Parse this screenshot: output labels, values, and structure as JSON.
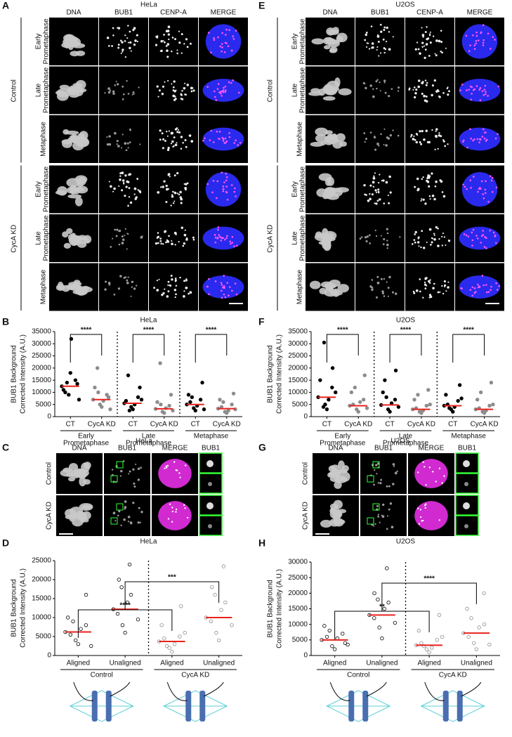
{
  "image_panels": [
    {
      "label": "A",
      "title": "HeLa",
      "columns": [
        "DNA",
        "BUB1",
        "CENP-A",
        "MERGE"
      ],
      "column_colors": [
        "#2a2aff",
        "#1fc21f",
        "#e020e0",
        "#000000"
      ],
      "groups": [
        {
          "name": "Control",
          "rows": [
            [
              "Early",
              "Prometaphase"
            ],
            [
              "Late",
              "Prometaphase"
            ],
            [
              "Metaphase"
            ]
          ]
        },
        {
          "name": "CycA KD",
          "rows": [
            [
              "Early",
              "Prometaphase"
            ],
            [
              "Late",
              "Prometaphase"
            ],
            [
              "Metaphase"
            ]
          ]
        }
      ]
    },
    {
      "label": "E",
      "title": "U2OS",
      "columns": [
        "DNA",
        "BUB1",
        "CENP-A",
        "MERGE"
      ],
      "column_colors": [
        "#2a2aff",
        "#1fc21f",
        "#e020e0",
        "#000000"
      ],
      "groups": [
        {
          "name": "Control",
          "rows": [
            [
              "Early",
              "Prometaphase"
            ],
            [
              "Late",
              "Prometaphase"
            ],
            [
              "Metaphase"
            ]
          ]
        },
        {
          "name": "CycA KD",
          "rows": [
            [
              "Early",
              "Prometaphase"
            ],
            [
              "Late",
              "Prometaphase"
            ],
            [
              "Metaphase"
            ]
          ]
        }
      ]
    },
    {
      "label": "C",
      "title": "HeLa",
      "columns": [
        "DNA",
        "BUB1",
        "MERGE",
        "BUB1"
      ],
      "column_colors": [
        "#e020e0",
        "#1fc21f",
        "#000000",
        "#000000"
      ],
      "rows": [
        "Control",
        "CycA KD"
      ],
      "inset_labels": [
        "U",
        "A"
      ]
    },
    {
      "label": "G",
      "title": "U2OS",
      "columns": [
        "DNA",
        "BUB1",
        "MERGE",
        "BUB1"
      ],
      "column_colors": [
        "#e020e0",
        "#1fc21f",
        "#000000",
        "#000000"
      ],
      "rows": [
        "Control",
        "CycA KD"
      ],
      "inset_labels": [
        "U",
        "A"
      ]
    }
  ],
  "chart_data": [
    {
      "type": "strip",
      "label": "B",
      "title": "HeLa",
      "y_label": [
        "BUB1 Background",
        "Corrected Intensity (A.U.)"
      ],
      "categories": [
        "CT",
        "CycA KD",
        "CT",
        "CycA KD",
        "CT",
        "CycA KD"
      ],
      "groups": [
        [
          "Early",
          "Prometaphase"
        ],
        [
          "Late",
          "Prometaphase"
        ],
        [
          "Metaphase"
        ]
      ],
      "colors": [
        "#000000",
        "#8c8c8c",
        "#000000",
        "#8c8c8c",
        "#000000",
        "#8c8c8c"
      ],
      "marker": "filled",
      "mean_color": "#e8221c",
      "ylim": [
        0,
        35000
      ],
      "yticks": [
        0,
        5000,
        10000,
        15000,
        20000,
        25000,
        30000,
        35000
      ],
      "significance": [
        "****",
        "****",
        "****"
      ],
      "means": [
        12500,
        7000,
        5500,
        3200,
        5000,
        3300
      ],
      "points": [
        [
          12500,
          9000,
          15000,
          11000,
          18000,
          13500,
          10000,
          32000,
          7000,
          14000
        ],
        [
          7000,
          5000,
          9000,
          12000,
          4000,
          8000,
          20000,
          6500,
          3000,
          10000
        ],
        [
          5500,
          4000,
          8000,
          6500,
          3000,
          12000,
          17000,
          5000,
          7000,
          2500
        ],
        [
          3200,
          2000,
          4500,
          6000,
          1500,
          9000,
          22000,
          3500,
          2500,
          5000
        ],
        [
          5000,
          3500,
          7000,
          9000,
          2500,
          14000,
          6000,
          4500,
          3000,
          8000
        ],
        [
          3300,
          2000,
          5000,
          7000,
          1500,
          9500,
          4000,
          2500,
          3000,
          6000
        ]
      ]
    },
    {
      "type": "strip",
      "label": "F",
      "title": "U2OS",
      "y_label": [
        "BUB1 Background",
        "Corrected Intensity (A.U.)"
      ],
      "categories": [
        "CT",
        "CycA KD",
        "CT",
        "CycA KD",
        "CT",
        "CycA KD"
      ],
      "groups": [
        [
          "Early",
          "Prometaphase"
        ],
        [
          "Late",
          "Prometaphase"
        ],
        [
          "Metaphase"
        ]
      ],
      "colors": [
        "#000000",
        "#8c8c8c",
        "#000000",
        "#8c8c8c",
        "#000000",
        "#8c8c8c"
      ],
      "marker": "filled",
      "mean_color": "#e8221c",
      "ylim": [
        0,
        35000
      ],
      "yticks": [
        0,
        5000,
        10000,
        15000,
        20000,
        25000,
        30000,
        35000
      ],
      "significance": [
        "****",
        "****",
        "****"
      ],
      "means": [
        8000,
        4500,
        4800,
        3000,
        4500,
        3000
      ],
      "points": [
        [
          8000,
          5000,
          12000,
          15000,
          3000,
          20000,
          30500,
          7000,
          10000,
          4000
        ],
        [
          4500,
          3000,
          7000,
          10000,
          2000,
          17000,
          5000,
          6000,
          3500,
          12000
        ],
        [
          4800,
          3000,
          7000,
          10000,
          2000,
          19000,
          15000,
          5500,
          4000,
          8000
        ],
        [
          3000,
          2000,
          4500,
          7000,
          1500,
          11000,
          3500,
          2500,
          5000,
          9000
        ],
        [
          4500,
          3000,
          6500,
          9000,
          2000,
          13000,
          5000,
          4000,
          7500,
          3500
        ],
        [
          3000,
          2000,
          4500,
          7000,
          1500,
          14000,
          3500,
          2500,
          5000,
          10000
        ]
      ]
    },
    {
      "type": "strip",
      "label": "D",
      "title": "HeLa",
      "y_label": [
        "BUB1 Background",
        "Corrected Intensity (A.U.)"
      ],
      "categories": [
        "Aligned",
        "Unaligned",
        "Aligned",
        "Unaligned"
      ],
      "groups": [
        [
          "Control"
        ],
        [
          "CycA KD"
        ]
      ],
      "colors": [
        "#000000",
        "#000000",
        "#8c8c8c",
        "#8c8c8c"
      ],
      "marker": "open",
      "mean_color": "#e8221c",
      "ylim": [
        0,
        25000
      ],
      "yticks": [
        0,
        5000,
        10000,
        15000,
        20000,
        25000
      ],
      "significance": [
        "****",
        "***"
      ],
      "means": [
        6200,
        12200,
        3700,
        10000
      ],
      "points": [
        [
          6200,
          4000,
          8000,
          10000,
          3000,
          16000,
          5500,
          7000,
          2500,
          9000
        ],
        [
          12200,
          8000,
          16000,
          20000,
          6000,
          24000,
          11000,
          14000,
          9500,
          18000
        ],
        [
          3700,
          2000,
          5000,
          8000,
          1000,
          13000,
          4500,
          3000,
          6000,
          2500
        ],
        [
          10000,
          6000,
          14000,
          18000,
          4000,
          23500,
          9000,
          12000,
          8000,
          16000
        ]
      ]
    },
    {
      "type": "strip",
      "label": "H",
      "title": "U2OS",
      "y_label": [
        "BUB1 Background",
        "Corrected Intensity (A.U.)"
      ],
      "categories": [
        "Aligned",
        "Unaligned",
        "Aligned",
        "Unaligned"
      ],
      "groups": [
        [
          "Control"
        ],
        [
          "CycA KD"
        ]
      ],
      "colors": [
        "#000000",
        "#000000",
        "#8c8c8c",
        "#8c8c8c"
      ],
      "marker": "open",
      "mean_color": "#e8221c",
      "ylim": [
        0,
        30000
      ],
      "yticks": [
        0,
        5000,
        10000,
        15000,
        20000,
        25000,
        30000
      ],
      "significance": [
        "**",
        "****"
      ],
      "means": [
        5000,
        13000,
        3300,
        7200
      ],
      "points": [
        [
          5000,
          3000,
          7000,
          9500,
          2000,
          4000,
          6000,
          5500,
          3500,
          8000
        ],
        [
          13000,
          9000,
          17000,
          20000,
          5500,
          28000,
          12000,
          15000,
          10500,
          18000
        ],
        [
          3300,
          2000,
          5000,
          8000,
          1000,
          13000,
          4000,
          2500,
          6000,
          3000
        ],
        [
          7200,
          4000,
          10000,
          15000,
          2000,
          20000,
          6000,
          9000,
          3500,
          12000
        ]
      ]
    }
  ]
}
